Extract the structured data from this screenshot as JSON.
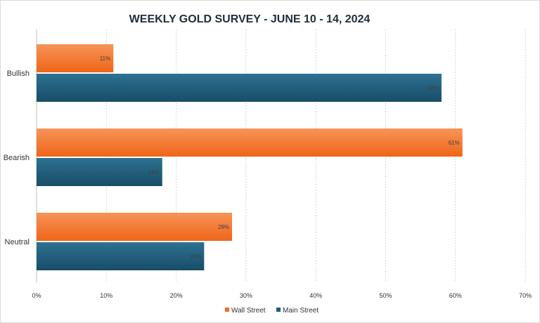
{
  "chart_data": {
    "type": "bar",
    "orientation": "horizontal",
    "title": "WEEKLY GOLD SURVEY - JUNE 10 - 14, 2024",
    "categories": [
      "Bullish",
      "Bearish",
      "Neutral"
    ],
    "series": [
      {
        "name": "Wall Street",
        "values": [
          11,
          61,
          28
        ],
        "labels": [
          "11%",
          "61%",
          "28%"
        ],
        "color": "#f26b21"
      },
      {
        "name": "Main Street",
        "values": [
          58,
          18,
          24
        ],
        "labels": [
          "58%",
          "18%",
          "24%"
        ],
        "color": "#1f5c7a"
      }
    ],
    "xlim": [
      0,
      70
    ],
    "xticks": [
      0,
      10,
      20,
      30,
      40,
      50,
      60,
      70
    ],
    "xtick_labels": [
      "0%",
      "10%",
      "20%",
      "30%",
      "40%",
      "50%",
      "60%",
      "70%"
    ],
    "grid": "vertical dashed",
    "legend_position": "bottom"
  }
}
